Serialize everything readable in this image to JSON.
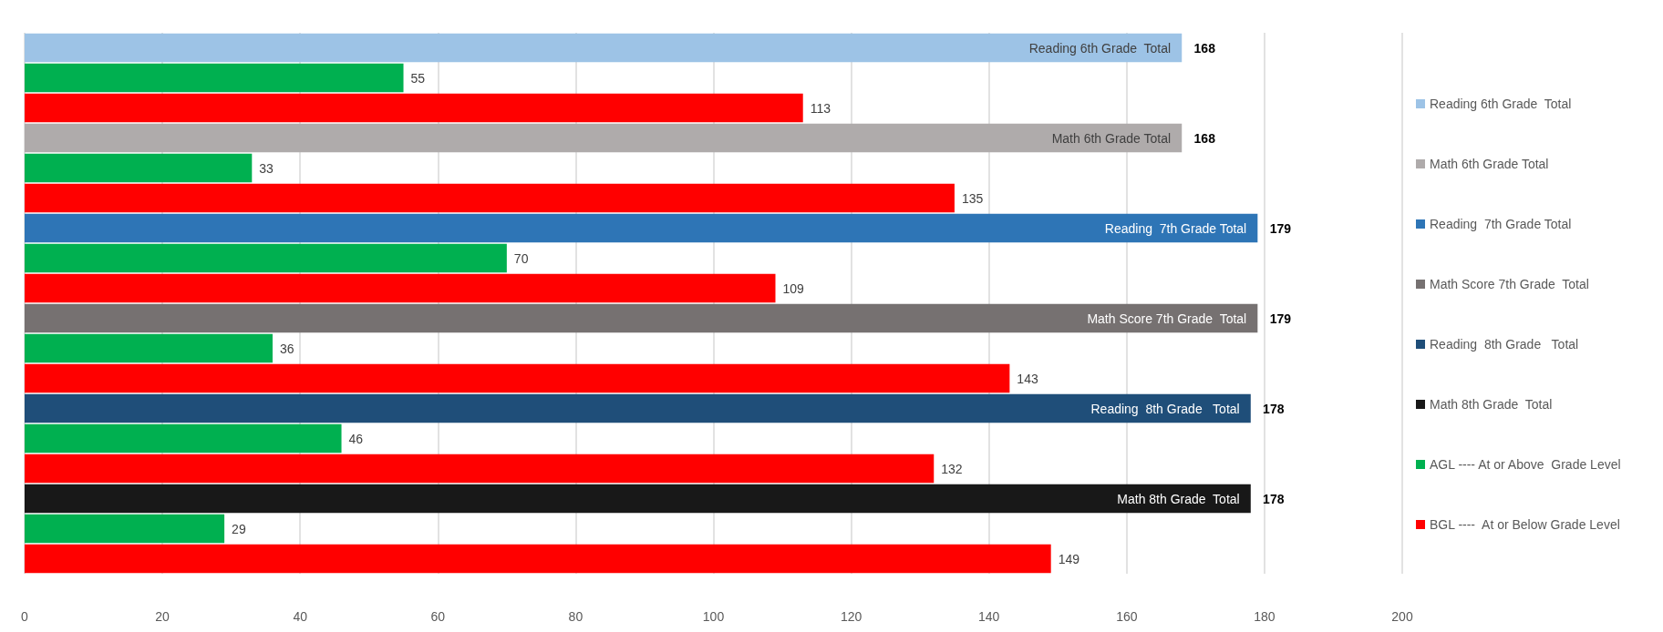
{
  "chart_data": {
    "type": "bar",
    "orientation": "horizontal",
    "categories": [
      null,
      null,
      null,
      null,
      null,
      null,
      null,
      null,
      null,
      null,
      null,
      null,
      null,
      null,
      null,
      null,
      null,
      null
    ],
    "series": [
      {
        "name": "Reading 6th Grade  Total",
        "color": "#9dc3e6",
        "values": [
          168,
          null,
          null,
          null,
          null,
          null,
          null,
          null,
          null,
          null,
          null,
          null,
          null,
          null,
          null,
          null,
          null,
          null
        ]
      },
      {
        "name": "Math 6th Grade Total",
        "color": "#afabab",
        "values": [
          null,
          null,
          null,
          168,
          null,
          null,
          null,
          null,
          null,
          null,
          null,
          null,
          null,
          null,
          null,
          null,
          null,
          null
        ]
      },
      {
        "name": "Reading  7th Grade Total",
        "color": "#2e75b6",
        "values": [
          null,
          null,
          null,
          null,
          null,
          null,
          179,
          null,
          null,
          null,
          null,
          null,
          null,
          null,
          null,
          null,
          null,
          null
        ]
      },
      {
        "name": "Math Score 7th Grade  Total",
        "color": "#767171",
        "values": [
          null,
          null,
          null,
          null,
          null,
          null,
          null,
          null,
          null,
          179,
          null,
          null,
          null,
          null,
          null,
          null,
          null,
          null
        ]
      },
      {
        "name": "Reading  8th Grade   Total",
        "color": "#1f4e79",
        "values": [
          null,
          null,
          null,
          null,
          null,
          null,
          null,
          null,
          null,
          null,
          null,
          null,
          178,
          null,
          null,
          null,
          null,
          null
        ]
      },
      {
        "name": "Math 8th Grade  Total",
        "color": "#181818",
        "values": [
          null,
          null,
          null,
          null,
          null,
          null,
          null,
          null,
          null,
          null,
          null,
          null,
          null,
          null,
          null,
          178,
          null,
          null
        ]
      },
      {
        "name": "AGL ---- At or Above  Grade Level",
        "color": "#00b050",
        "values": [
          null,
          55,
          null,
          null,
          33,
          null,
          null,
          70,
          null,
          null,
          36,
          null,
          null,
          46,
          null,
          null,
          29,
          null
        ]
      },
      {
        "name": "BGL ----  At or Below Grade Level",
        "color": "#ff0000",
        "values": [
          null,
          null,
          113,
          null,
          null,
          135,
          null,
          null,
          109,
          null,
          null,
          143,
          null,
          null,
          132,
          null,
          null,
          149
        ]
      }
    ],
    "xlim": [
      0,
      200
    ],
    "xticks": [
      0,
      20,
      40,
      60,
      80,
      100,
      120,
      140,
      160,
      180,
      200
    ],
    "grid": "x",
    "legend": "right",
    "data_labels": true
  }
}
